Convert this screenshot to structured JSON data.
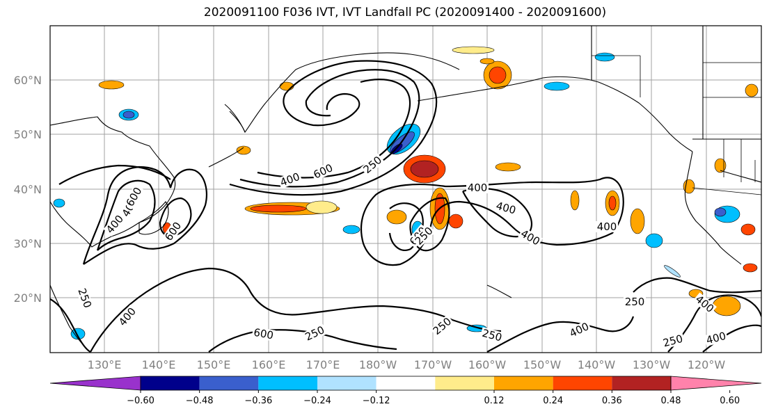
{
  "title": "2020091100 F036 IVT, IVT Landfall PC (2020091400 - 2020091600)",
  "lat_labels": [
    "60°N",
    "50°N",
    "40°N",
    "30°N",
    "20°N"
  ],
  "lon_labels": [
    "130°E",
    "140°E",
    "150°E",
    "160°E",
    "170°E",
    "180°W",
    "170°W",
    "160°W",
    "150°W",
    "140°W",
    "130°W",
    "120°W"
  ],
  "contour_labels": [
    "400",
    "600",
    "250",
    "400",
    "600",
    "400",
    "600",
    "250",
    "400",
    "600",
    "600",
    "400",
    "400",
    "250",
    "400",
    "400",
    "250",
    "250",
    "250",
    "400",
    "250",
    "400",
    "250",
    "400"
  ],
  "colorbar": {
    "tick_labels": [
      "−0.60",
      "−0.48",
      "−0.36",
      "−0.24",
      "−0.12",
      "0.12",
      "0.24",
      "0.36",
      "0.48",
      "0.60"
    ],
    "colors": [
      "#9932cc",
      "#00008b",
      "#3a5fcd",
      "#00bfff",
      "#b0e2ff",
      "#ffffff",
      "#ffec8b",
      "#ffa500",
      "#ff4500",
      "#b22222",
      "#ff82ab"
    ]
  }
}
